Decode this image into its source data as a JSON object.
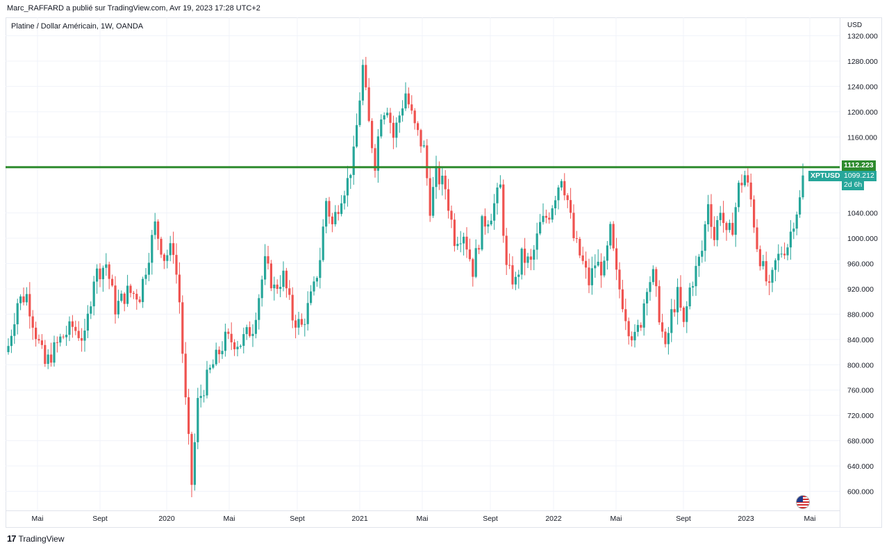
{
  "header": {
    "publisher": "Marc_RAFFARD a publié sur TradingView.com, Avr 19, 2023 17:28 UTC+2",
    "symbol_title": "Platine / Dollar Américain, 1W, OANDA"
  },
  "price_axis": {
    "currency": "USD",
    "ticks": [
      "1320.000",
      "1280.000",
      "1240.000",
      "1200.000",
      "1160.000",
      "1040.000",
      "1000.000",
      "960.000",
      "920.000",
      "880.000",
      "840.000",
      "800.000",
      "760.000",
      "720.000",
      "680.000",
      "640.000",
      "600.000"
    ]
  },
  "tags": {
    "resistance_value": "1112.223",
    "symbol": "XPTUSD",
    "last_price": "1099.212",
    "countdown": "2d 6h"
  },
  "footer": {
    "brand": "TradingView",
    "brand_mark": "17"
  },
  "colors": {
    "up": "#26a69a",
    "down": "#ef5350",
    "resistance_line": "#2e8b2e"
  },
  "chart_data": {
    "type": "candlestick",
    "title": "Platine / Dollar Américain, 1W, OANDA",
    "ylabel": "USD",
    "ylim": [
      580,
      1340
    ],
    "grid": true,
    "x_tick_labels": [
      "Mai",
      "Sept",
      "2020",
      "Mai",
      "Sept",
      "2021",
      "Mai",
      "Sept",
      "2022",
      "Mai",
      "Sept",
      "2023",
      "Mai"
    ],
    "resistance_level": 1112.223,
    "last_price": 1099.212,
    "anchors": [
      {
        "w": 0,
        "c": 830
      },
      {
        "w": 3,
        "c": 900
      },
      {
        "w": 6,
        "c": 910
      },
      {
        "w": 9,
        "c": 850
      },
      {
        "w": 12,
        "c": 800
      },
      {
        "w": 17,
        "c": 840
      },
      {
        "w": 21,
        "c": 860
      },
      {
        "w": 25,
        "c": 840
      },
      {
        "w": 28,
        "c": 940
      },
      {
        "w": 32,
        "c": 960
      },
      {
        "w": 35,
        "c": 890
      },
      {
        "w": 39,
        "c": 915
      },
      {
        "w": 43,
        "c": 910
      },
      {
        "w": 48,
        "c": 1020
      },
      {
        "w": 51,
        "c": 970
      },
      {
        "w": 54,
        "c": 985
      },
      {
        "w": 56,
        "c": 900
      },
      {
        "w": 58,
        "c": 740
      },
      {
        "w": 60,
        "c": 612
      },
      {
        "w": 62,
        "c": 740
      },
      {
        "w": 66,
        "c": 790
      },
      {
        "w": 71,
        "c": 840
      },
      {
        "w": 76,
        "c": 835
      },
      {
        "w": 80,
        "c": 860
      },
      {
        "w": 84,
        "c": 960
      },
      {
        "w": 87,
        "c": 920
      },
      {
        "w": 90,
        "c": 940
      },
      {
        "w": 93,
        "c": 875
      },
      {
        "w": 96,
        "c": 860
      },
      {
        "w": 100,
        "c": 920
      },
      {
        "w": 102,
        "c": 970
      },
      {
        "w": 104,
        "c": 1060
      },
      {
        "w": 106,
        "c": 1020
      },
      {
        "w": 109,
        "c": 1070
      },
      {
        "w": 111,
        "c": 1090
      },
      {
        "w": 113,
        "c": 1130
      },
      {
        "w": 116,
        "c": 1270
      },
      {
        "w": 118,
        "c": 1180
      },
      {
        "w": 120,
        "c": 1120
      },
      {
        "w": 122,
        "c": 1200
      },
      {
        "w": 124,
        "c": 1210
      },
      {
        "w": 126,
        "c": 1160
      },
      {
        "w": 128,
        "c": 1195
      },
      {
        "w": 130,
        "c": 1230
      },
      {
        "w": 133,
        "c": 1175
      },
      {
        "w": 136,
        "c": 1140
      },
      {
        "w": 138,
        "c": 1050
      },
      {
        "w": 140,
        "c": 1100
      },
      {
        "w": 143,
        "c": 1080
      },
      {
        "w": 146,
        "c": 1000
      },
      {
        "w": 149,
        "c": 1010
      },
      {
        "w": 152,
        "c": 950
      },
      {
        "w": 155,
        "c": 1020
      },
      {
        "w": 158,
        "c": 1040
      },
      {
        "w": 161,
        "c": 1080
      },
      {
        "w": 163,
        "c": 950
      },
      {
        "w": 166,
        "c": 930
      },
      {
        "w": 168,
        "c": 970
      },
      {
        "w": 171,
        "c": 960
      },
      {
        "w": 174,
        "c": 1020
      },
      {
        "w": 177,
        "c": 1040
      },
      {
        "w": 179,
        "c": 1070
      },
      {
        "w": 181,
        "c": 1100
      },
      {
        "w": 183,
        "c": 1060
      },
      {
        "w": 185,
        "c": 1000
      },
      {
        "w": 188,
        "c": 960
      },
      {
        "w": 190,
        "c": 930
      },
      {
        "w": 192,
        "c": 960
      },
      {
        "w": 195,
        "c": 950
      },
      {
        "w": 197,
        "c": 1010
      },
      {
        "w": 199,
        "c": 940
      },
      {
        "w": 201,
        "c": 900
      },
      {
        "w": 203,
        "c": 860
      },
      {
        "w": 205,
        "c": 840
      },
      {
        "w": 207,
        "c": 870
      },
      {
        "w": 209,
        "c": 930
      },
      {
        "w": 211,
        "c": 940
      },
      {
        "w": 213,
        "c": 880
      },
      {
        "w": 215,
        "c": 820
      },
      {
        "w": 217,
        "c": 880
      },
      {
        "w": 219,
        "c": 910
      },
      {
        "w": 221,
        "c": 860
      },
      {
        "w": 223,
        "c": 920
      },
      {
        "w": 225,
        "c": 950
      },
      {
        "w": 227,
        "c": 980
      },
      {
        "w": 229,
        "c": 1060
      },
      {
        "w": 231,
        "c": 1000
      },
      {
        "w": 233,
        "c": 1050
      },
      {
        "w": 235,
        "c": 1000
      },
      {
        "w": 237,
        "c": 1020
      },
      {
        "w": 239,
        "c": 1080
      },
      {
        "w": 241,
        "c": 1100
      },
      {
        "w": 243,
        "c": 1060
      },
      {
        "w": 245,
        "c": 990
      },
      {
        "w": 247,
        "c": 950
      },
      {
        "w": 249,
        "c": 915
      },
      {
        "w": 251,
        "c": 960
      },
      {
        "w": 253,
        "c": 980
      },
      {
        "w": 255,
        "c": 990
      },
      {
        "w": 257,
        "c": 1030
      },
      {
        "w": 259,
        "c": 1060
      },
      {
        "w": 260,
        "c": 1099.212
      }
    ]
  }
}
